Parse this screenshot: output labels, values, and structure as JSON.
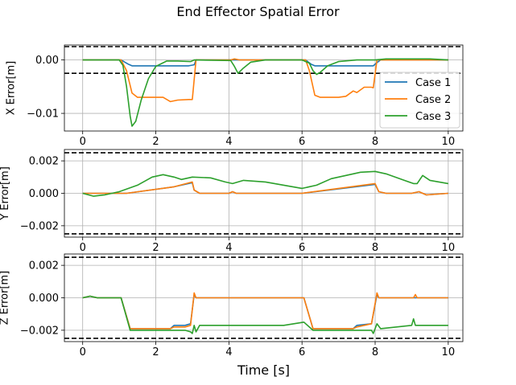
{
  "chart_data": {
    "type": "line",
    "title": "End Effector Spatial Error",
    "xlabel": "Time [s]",
    "xlim": [
      -0.5,
      10.4
    ],
    "xticks": [
      0,
      2,
      4,
      6,
      8,
      10
    ],
    "grid": true,
    "legend": {
      "placement": "right",
      "panel": 0,
      "entries": [
        "Case 1",
        "Case 2",
        "Case 3"
      ]
    },
    "colors": {
      "Case 1": "#1f77b4",
      "Case 2": "#ff7f0e",
      "Case 3": "#2ca02c",
      "bounds": "#000000"
    },
    "subplots": [
      {
        "ylabel": "X Error[m]",
        "ylim": [
          -0.0133,
          0.0028
        ],
        "yticks": [
          0.0,
          -0.01
        ],
        "ytick_labels": [
          "0.00",
          "−0.01"
        ],
        "bounds": [
          0.0025,
          -0.0025
        ],
        "series": [
          {
            "name": "Case 1",
            "x": [
              0,
              1.05,
              1.25,
              1.35,
              2.9,
              3.05,
              3.1,
              4.1,
              4.25,
              6.1,
              6.25,
              6.35,
              7.95,
              8.05,
              8.15,
              10
            ],
            "y": [
              0,
              0,
              -0.0008,
              -0.0011,
              -0.0011,
              -0.0009,
              0,
              0,
              0,
              0,
              -0.0008,
              -0.0011,
              -0.0011,
              -0.0005,
              0,
              0
            ]
          },
          {
            "name": "Case 2",
            "x": [
              0,
              1.05,
              1.2,
              1.35,
              1.5,
              2.2,
              2.4,
              2.6,
              2.9,
              3.0,
              3.1,
              4.05,
              4.15,
              4.3,
              6.1,
              6.2,
              6.35,
              6.5,
              7.0,
              7.2,
              7.4,
              7.5,
              7.7,
              7.9,
              7.95,
              8.05,
              10
            ],
            "y": [
              0,
              0,
              -0.002,
              -0.0062,
              -0.007,
              -0.007,
              -0.0078,
              -0.0075,
              -0.0074,
              -0.0074,
              0,
              0,
              0.0002,
              0,
              0,
              -0.002,
              -0.0066,
              -0.007,
              -0.007,
              -0.0068,
              -0.0058,
              -0.0061,
              -0.0051,
              -0.0051,
              -0.0052,
              0,
              0
            ]
          },
          {
            "name": "Case 3",
            "x": [
              0,
              1.0,
              1.1,
              1.2,
              1.3,
              1.35,
              1.45,
              1.6,
              1.8,
              2.0,
              2.3,
              2.6,
              2.95,
              3.05,
              4.05,
              4.15,
              4.25,
              4.4,
              4.6,
              5.0,
              6.0,
              6.2,
              6.3,
              6.4,
              6.5,
              6.7,
              7.0,
              7.5,
              8.0,
              8.3,
              9.5,
              10
            ],
            "y": [
              0,
              0,
              -0.001,
              -0.005,
              -0.0105,
              -0.0124,
              -0.0115,
              -0.0075,
              -0.0035,
              -0.0012,
              -0.0002,
              -0.0002,
              -0.0003,
              0,
              -0.0001,
              -0.0012,
              -0.0025,
              -0.0015,
              -0.0004,
              0,
              0,
              -0.0006,
              -0.002,
              -0.0027,
              -0.0023,
              -0.0011,
              -0.0003,
              0,
              0,
              0.0002,
              0.0002,
              0
            ]
          }
        ]
      },
      {
        "ylabel": "Y Error[m]",
        "ylim": [
          -0.0027,
          0.0027
        ],
        "yticks": [
          0.002,
          0.0,
          -0.002
        ],
        "ytick_labels": [
          "0.002",
          "0.000",
          "−0.002"
        ],
        "bounds": [
          0.0025,
          -0.0025
        ],
        "series": [
          {
            "name": "Case 1",
            "x": [
              0,
              1.2,
              2.5,
              3.0,
              3.05,
              3.2,
              4.0,
              4.1,
              4.2,
              6.0,
              8.0,
              8.1,
              8.3,
              9.0,
              9.2,
              9.4,
              10
            ],
            "y": [
              0,
              0,
              0.0004,
              0.00065,
              0.0002,
              0,
              0,
              0.0001,
              0,
              0,
              0.00055,
              0.0001,
              0,
              0,
              0.0001,
              -0.0001,
              0
            ]
          },
          {
            "name": "Case 2",
            "x": [
              0,
              1.2,
              2.5,
              3.0,
              3.05,
              3.2,
              4.0,
              4.1,
              4.2,
              6.0,
              8.0,
              8.1,
              8.3,
              9.0,
              9.2,
              9.4,
              10
            ],
            "y": [
              0,
              0,
              0.0004,
              0.0007,
              0.0002,
              0,
              0,
              0.0001,
              0,
              0,
              0.0006,
              0.0001,
              0,
              0,
              0.0001,
              -0.0001,
              0
            ]
          },
          {
            "name": "Case 3",
            "x": [
              0,
              0.3,
              0.6,
              1.0,
              1.5,
              1.9,
              2.2,
              2.5,
              2.7,
              3.0,
              3.5,
              3.9,
              4.1,
              4.4,
              5.0,
              5.5,
              6.0,
              6.4,
              6.8,
              7.2,
              7.6,
              8.0,
              8.3,
              8.8,
              9.05,
              9.15,
              9.3,
              9.5,
              10
            ],
            "y": [
              0,
              -0.00018,
              -0.0001,
              0.0001,
              0.0005,
              0.001,
              0.00115,
              0.001,
              0.00085,
              0.001,
              0.00095,
              0.0007,
              0.0006,
              0.0008,
              0.0007,
              0.0005,
              0.0003,
              0.0005,
              0.0009,
              0.0011,
              0.0013,
              0.00135,
              0.0012,
              0.0008,
              0.0006,
              0.0006,
              0.0011,
              0.0008,
              0.0006
            ]
          }
        ]
      },
      {
        "ylabel": "Z Error[m]",
        "ylim": [
          -0.0027,
          0.0027
        ],
        "yticks": [
          0.002,
          0.0,
          -0.002
        ],
        "ytick_labels": [
          "0.002",
          "0.000",
          "−0.002"
        ],
        "bounds": [
          0.0025,
          -0.0025
        ],
        "series": [
          {
            "name": "Case 1",
            "x": [
              0,
              0.2,
              0.4,
              1.05,
              1.3,
              1.95,
              2.4,
              2.5,
              2.8,
              2.95,
              3.05,
              3.1,
              4.0,
              6.05,
              6.3,
              7.0,
              7.4,
              7.5,
              7.9,
              8.05,
              8.1,
              10
            ],
            "y": [
              0,
              0.0001,
              0,
              0,
              -0.0019,
              -0.0019,
              -0.0019,
              -0.0017,
              -0.0017,
              -0.0016,
              0.0002,
              0,
              0,
              0,
              -0.0019,
              -0.0019,
              -0.0019,
              -0.0017,
              -0.0016,
              0.0002,
              0,
              0
            ]
          },
          {
            "name": "Case 2",
            "x": [
              0,
              0.2,
              0.4,
              1.05,
              1.3,
              1.95,
              2.4,
              2.5,
              2.8,
              2.95,
              3.05,
              3.1,
              4.0,
              6.05,
              6.3,
              7.0,
              7.4,
              7.5,
              7.9,
              8.05,
              8.1,
              9.05,
              9.1,
              9.15,
              10
            ],
            "y": [
              0,
              0.0001,
              0,
              0,
              -0.0019,
              -0.0019,
              -0.0019,
              -0.0018,
              -0.0018,
              -0.0017,
              0.0003,
              0,
              0,
              0,
              -0.0019,
              -0.0019,
              -0.0019,
              -0.0018,
              -0.0016,
              0.0003,
              0,
              0,
              0.0002,
              0,
              0
            ]
          },
          {
            "name": "Case 3",
            "x": [
              0,
              0.2,
              0.4,
              1.05,
              1.3,
              1.95,
              2.5,
              2.8,
              2.95,
              3.0,
              3.05,
              3.1,
              3.2,
              4.0,
              5.5,
              6.05,
              6.3,
              7.0,
              7.5,
              7.9,
              7.95,
              8.05,
              8.15,
              9.0,
              9.05,
              9.1,
              10
            ],
            "y": [
              0,
              0.0001,
              0,
              0,
              -0.002,
              -0.002,
              -0.002,
              -0.002,
              -0.0021,
              -0.0022,
              -0.0017,
              -0.0021,
              -0.0017,
              -0.0017,
              -0.0017,
              -0.0015,
              -0.002,
              -0.002,
              -0.002,
              -0.002,
              -0.0022,
              -0.0016,
              -0.0019,
              -0.0017,
              -0.0013,
              -0.0017,
              -0.0017
            ]
          }
        ]
      }
    ]
  }
}
